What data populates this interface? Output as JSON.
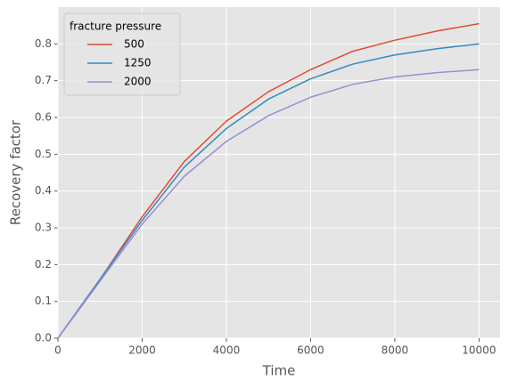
{
  "chart_data": {
    "type": "line",
    "x_label": "Time",
    "y_label": "Recovery factor",
    "x": [
      0,
      1000,
      2000,
      3000,
      4000,
      5000,
      6000,
      7000,
      8000,
      9000,
      10000
    ],
    "series": [
      {
        "name": "500",
        "color": "#E24A33",
        "values": [
          0,
          0.16,
          0.33,
          0.48,
          0.59,
          0.67,
          0.73,
          0.78,
          0.81,
          0.835,
          0.855
        ]
      },
      {
        "name": "1250",
        "color": "#348ABD",
        "values": [
          0,
          0.16,
          0.32,
          0.465,
          0.57,
          0.65,
          0.705,
          0.745,
          0.77,
          0.787,
          0.8
        ]
      },
      {
        "name": "2000",
        "color": "#988ED5",
        "values": [
          0,
          0.155,
          0.31,
          0.44,
          0.535,
          0.605,
          0.655,
          0.69,
          0.71,
          0.722,
          0.73
        ]
      }
    ],
    "legend_title": "fracture pressure",
    "legend": "upper left",
    "xlim": [
      0,
      10500
    ],
    "ylim": [
      0,
      0.9
    ],
    "xticks": [
      0,
      2000,
      4000,
      6000,
      8000,
      10000
    ],
    "yticks": [
      {
        "value": 0,
        "label": "0.0"
      },
      0.1,
      0.2,
      0.3,
      0.4,
      0.5,
      0.6,
      0.7,
      0.8
    ],
    "grid": true
  }
}
